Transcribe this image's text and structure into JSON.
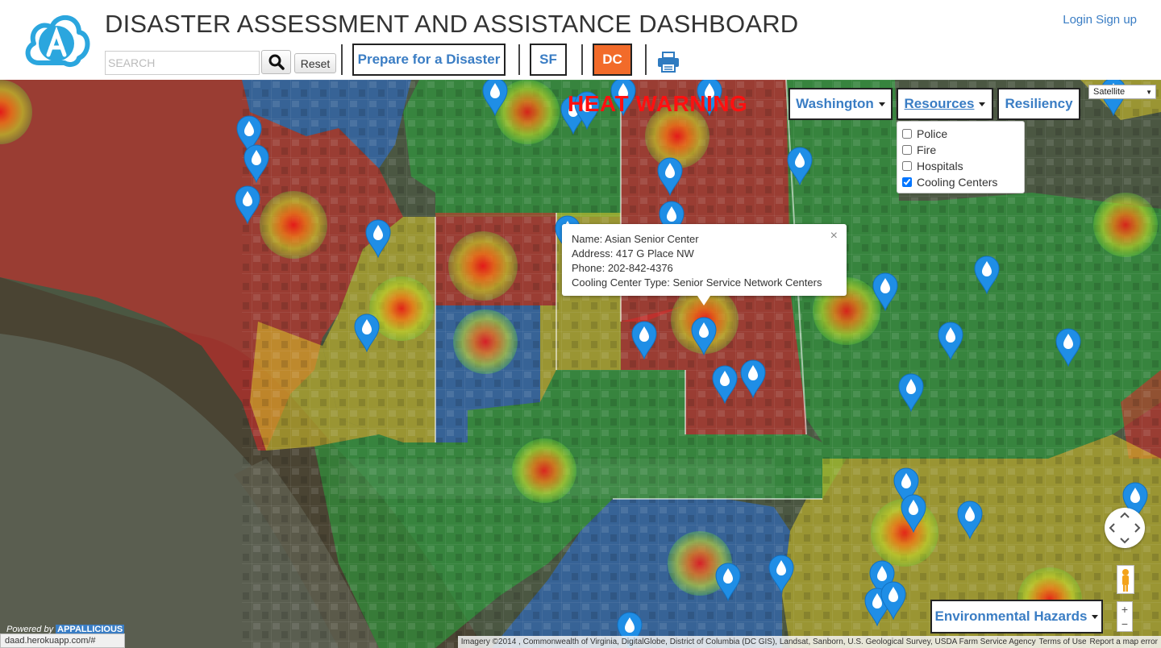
{
  "header": {
    "title": "DISASTER ASSESSMENT AND ASSISTANCE DASHBOARD",
    "search_placeholder": "SEARCH",
    "reset_label": "Reset",
    "prepare_label": "Prepare for a Disaster",
    "sf_label": "SF",
    "dc_label": "DC",
    "login_label": "Login",
    "signup_label": "Sign up",
    "colors": {
      "brand_blue": "#3a7dc4",
      "active_orange": "#f26b2a"
    }
  },
  "map": {
    "warning_text": "HEAT WARNING",
    "region_label": "Washington",
    "resources_label": "Resources",
    "resiliency_label": "Resiliency",
    "map_type": "Satellite",
    "resources_options": [
      {
        "label": "Police",
        "checked": false
      },
      {
        "label": "Fire",
        "checked": false
      },
      {
        "label": "Hospitals",
        "checked": false
      },
      {
        "label": "Cooling Centers",
        "checked": true
      }
    ],
    "popup": {
      "name": "Name: Asian Senior Center",
      "address": "Address: 417 G Place NW",
      "phone": "Phone: 202-842-4376",
      "type": "Cooling Center Type: Senior Service Network Centers",
      "close": "×"
    },
    "env_hazards_label": "Environmental Hazards",
    "powered_by": "Powered by",
    "powered_brand": "APPALLICIOUS",
    "status_url": "daad.herokuapp.com/#",
    "attribution": "Imagery ©2014 , Commonwealth of Virginia, DigitalGlobe, District of Columbia (DC GIS), Landsat, Sanborn, U.S. Geological Survey, USDA Farm Service Agency",
    "terms": "Terms of Use",
    "report": "Report a map error",
    "zoom_in": "+",
    "zoom_out": "−"
  }
}
